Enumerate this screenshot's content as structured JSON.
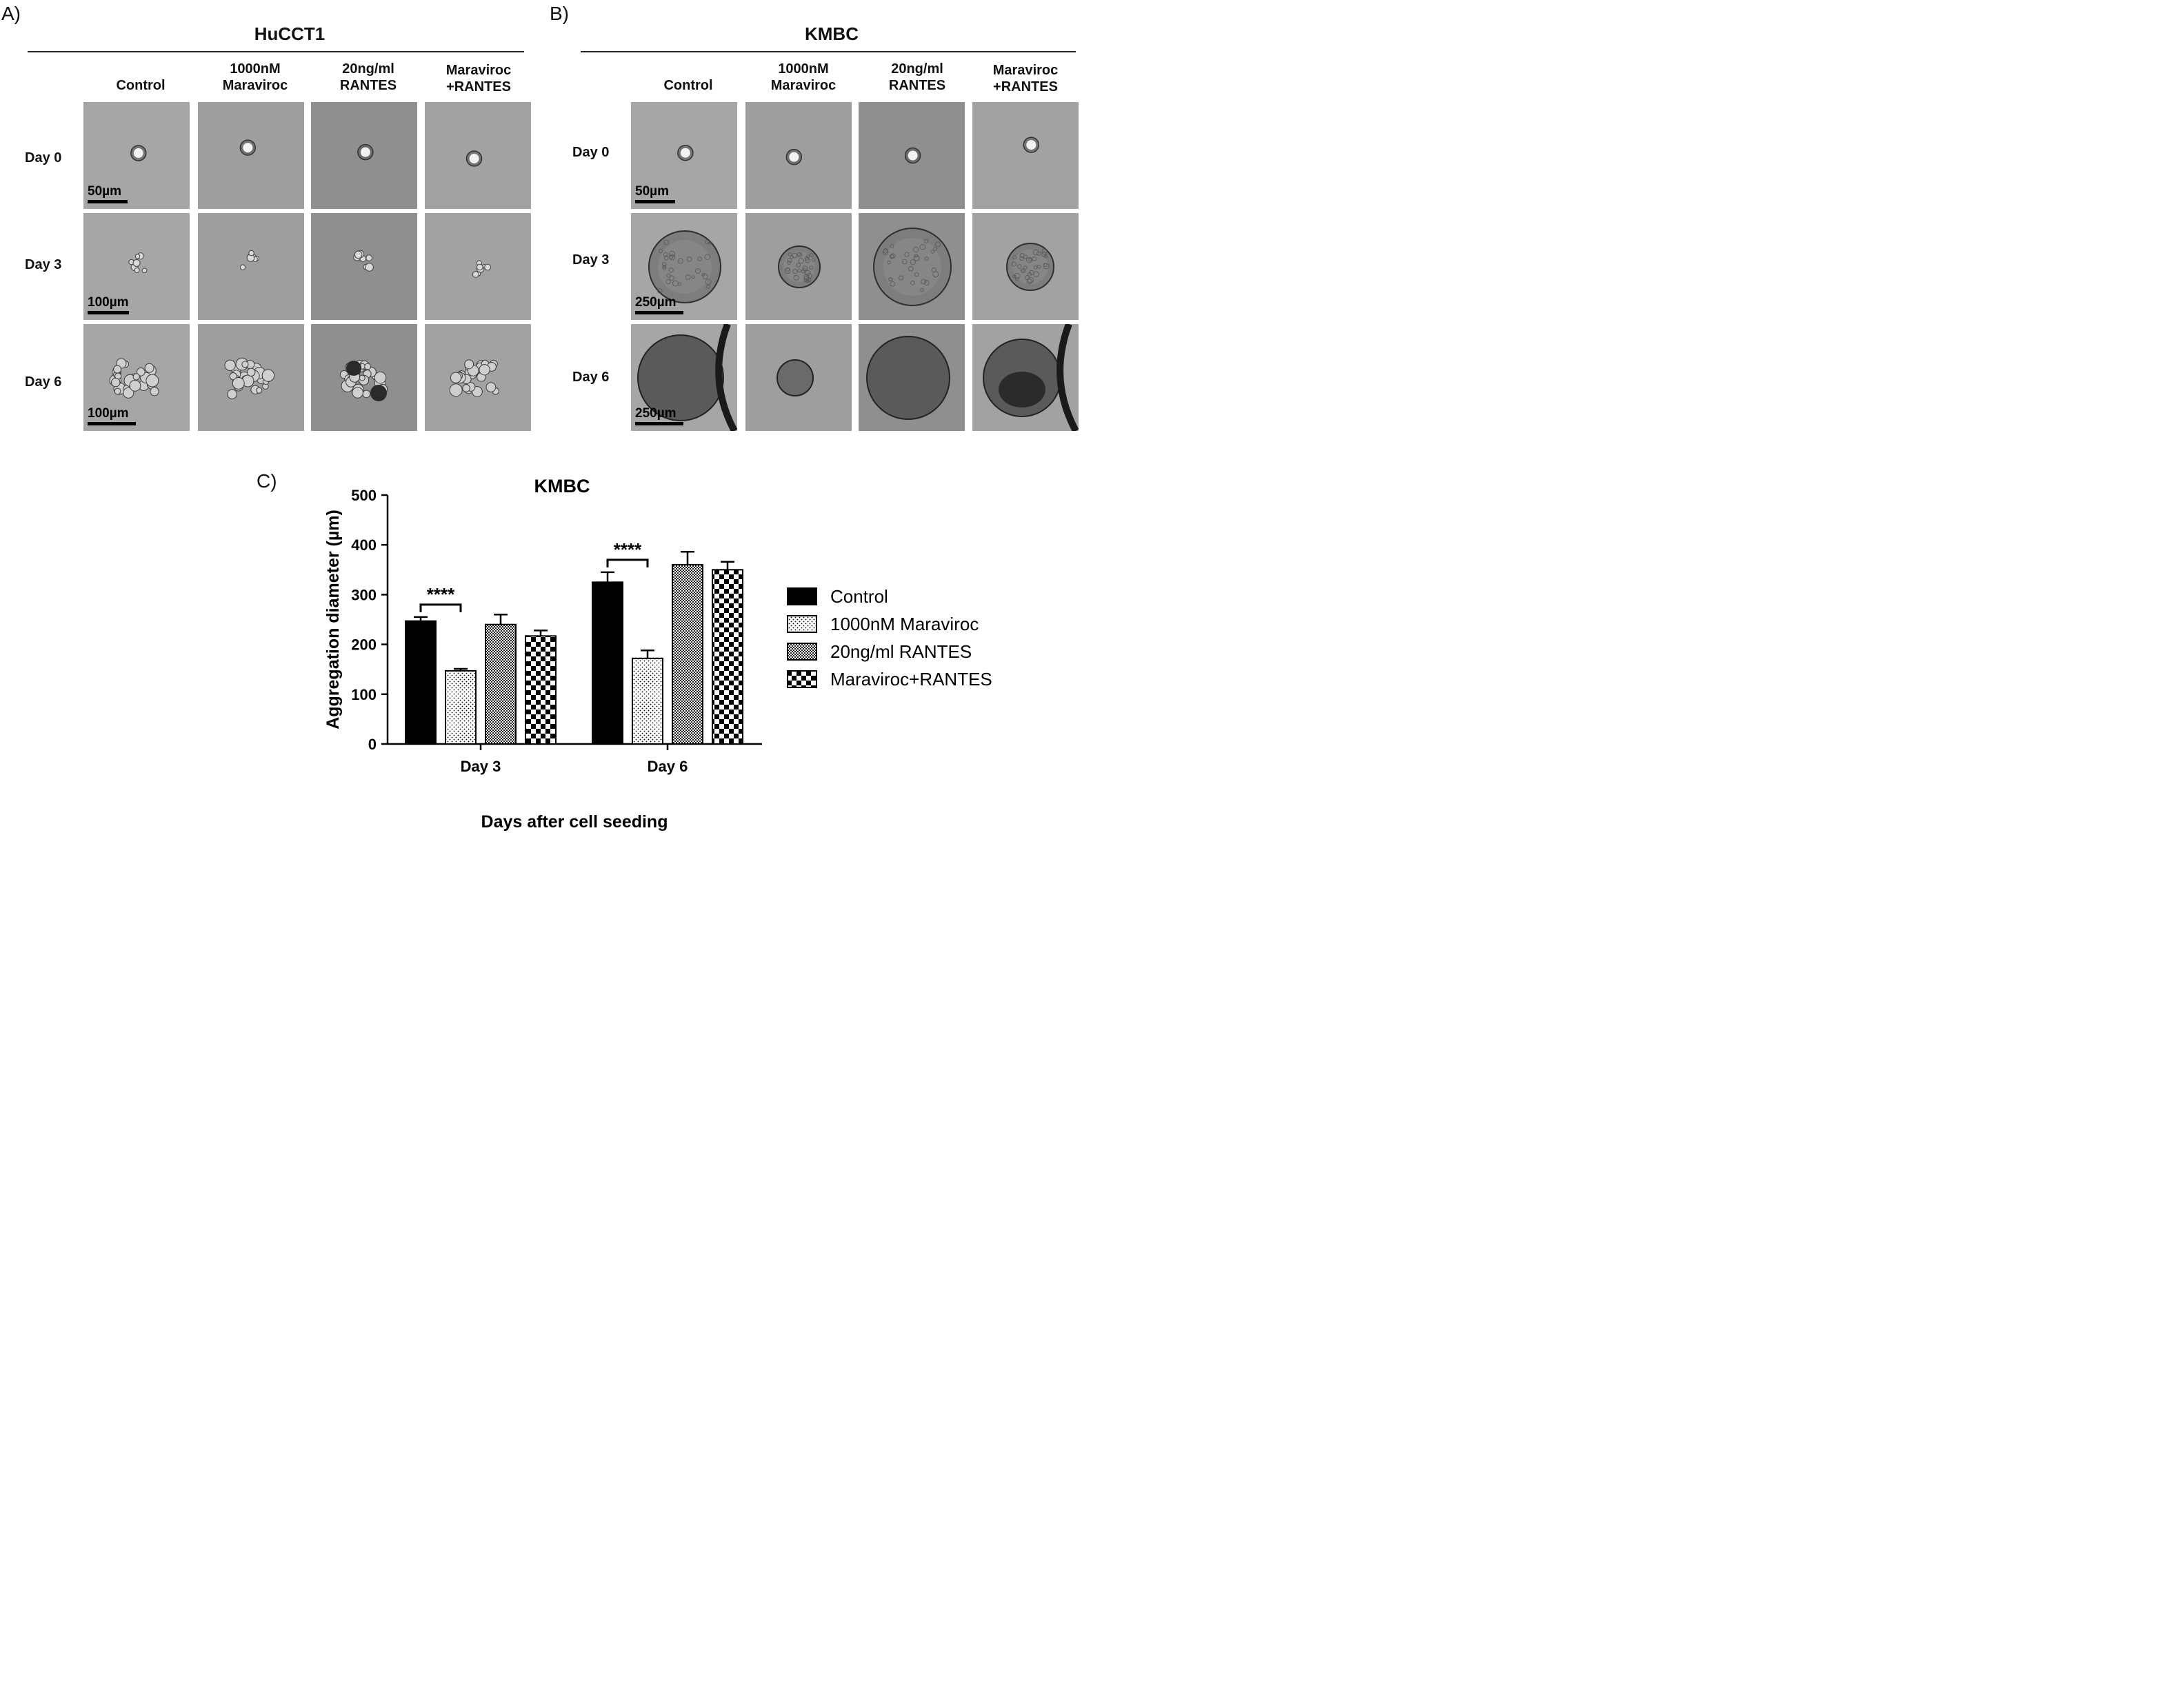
{
  "figure": {
    "panel_a": {
      "letter": "A)",
      "title": "HuCCT1",
      "columns": [
        {
          "line1": "Control",
          "line2": ""
        },
        {
          "line1": "1000nM",
          "line2": "Maraviroc"
        },
        {
          "line1": "20ng/ml",
          "line2": "RANTES"
        },
        {
          "line1": "Maraviroc",
          "line2": "+RANTES"
        }
      ],
      "rows": [
        "Day 0",
        "Day 3",
        "Day 6"
      ],
      "scalebars": [
        "50µm",
        "100µm",
        "100µm"
      ]
    },
    "panel_b": {
      "letter": "B)",
      "title": "KMBC",
      "columns": [
        {
          "line1": "Control",
          "line2": ""
        },
        {
          "line1": "1000nM",
          "line2": "Maraviroc"
        },
        {
          "line1": "20ng/ml",
          "line2": "RANTES"
        },
        {
          "line1": "Maraviroc",
          "line2": "+RANTES"
        }
      ],
      "rows": [
        "Day 0",
        "Day 3",
        "Day 6"
      ],
      "scalebars": [
        "50µm",
        "250µm",
        "250µm"
      ]
    },
    "panel_c": {
      "letter": "C)"
    }
  },
  "chart_data": {
    "type": "bar",
    "title": "KMBC",
    "xlabel": "Days after cell seeding",
    "ylabel": "Aggregation diameter (µm)",
    "categories": [
      "Day 3",
      "Day 6"
    ],
    "ylim": [
      0,
      500
    ],
    "yticks": [
      "0",
      "100",
      "200",
      "300",
      "400",
      "500"
    ],
    "series": [
      {
        "name": "Control",
        "values": [
          247,
          325
        ],
        "errors": [
          8,
          20
        ],
        "pattern": "solid"
      },
      {
        "name": "1000nM Maraviroc",
        "values": [
          147,
          172
        ],
        "errors": [
          4,
          16
        ],
        "pattern": "dots"
      },
      {
        "name": "20ng/ml RANTES",
        "values": [
          240,
          360
        ],
        "errors": [
          20,
          26
        ],
        "pattern": "fine-check"
      },
      {
        "name": "Maraviroc+RANTES",
        "values": [
          217,
          350
        ],
        "errors": [
          11,
          16
        ],
        "pattern": "checker"
      }
    ],
    "significance": [
      {
        "category": "Day 3",
        "label": "****"
      },
      {
        "category": "Day 6",
        "label": "****"
      }
    ],
    "legend_position": "right"
  }
}
